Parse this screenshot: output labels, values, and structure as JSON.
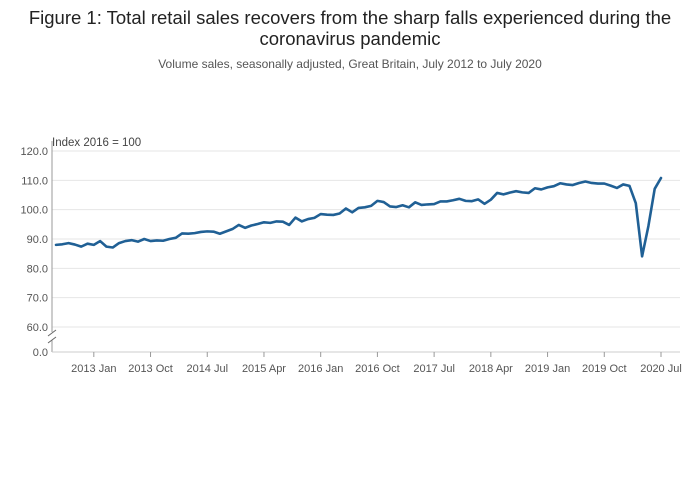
{
  "chart_data": {
    "type": "line",
    "title": "Figure 1: Total retail sales recovers from the sharp falls experienced during the coronavirus pandemic",
    "subtitle": "Volume sales, seasonally adjusted, Great Britain, July 2012 to July 2020",
    "unit_label": "Index 2016 = 100",
    "y_ticks": [
      "120.0",
      "110.0",
      "100.0",
      "90.0",
      "80.0",
      "70.0",
      "60.0",
      "0.0"
    ],
    "y_tick_values": [
      120,
      110,
      100,
      90,
      80,
      70,
      60
    ],
    "axis_break": true,
    "ylim": [
      60,
      120
    ],
    "x_ticks": [
      {
        "label": "2013 Jan",
        "index": 6
      },
      {
        "label": "2013 Oct",
        "index": 15
      },
      {
        "label": "2014 Jul",
        "index": 24
      },
      {
        "label": "2015 Apr",
        "index": 33
      },
      {
        "label": "2016 Jan",
        "index": 42
      },
      {
        "label": "2016 Oct",
        "index": 51
      },
      {
        "label": "2017 Jul",
        "index": 60
      },
      {
        "label": "2018 Apr",
        "index": 69
      },
      {
        "label": "2019 Jan",
        "index": 78
      },
      {
        "label": "2019 Oct",
        "index": 87
      },
      {
        "label": "2020 Jul",
        "index": 96
      }
    ],
    "x_start": "2012 Jul",
    "x_end": "2020 Jul",
    "grid": true,
    "line_color": "#206095",
    "series": [
      {
        "values": [
          88.0,
          88.2,
          88.6,
          88.1,
          87.4,
          88.4,
          88.0,
          89.3,
          87.4,
          87.1,
          88.6,
          89.3,
          89.6,
          89.1,
          90.0,
          89.3,
          89.5,
          89.4,
          90.0,
          90.4,
          91.9,
          91.8,
          92.0,
          92.4,
          92.6,
          92.5,
          91.8,
          92.6,
          93.4,
          94.8,
          93.8,
          94.6,
          95.1,
          95.7,
          95.5,
          96.0,
          95.9,
          94.8,
          97.3,
          96.0,
          96.8,
          97.2,
          98.5,
          98.3,
          98.2,
          98.7,
          100.4,
          99.1,
          100.6,
          100.8,
          101.3,
          103.0,
          102.6,
          101.1,
          100.9,
          101.5,
          100.8,
          102.5,
          101.6,
          101.8,
          101.9,
          102.8,
          102.8,
          103.2,
          103.7,
          103.0,
          102.9,
          103.5,
          102.0,
          103.4,
          105.7,
          105.2,
          105.8,
          106.3,
          105.9,
          105.7,
          107.3,
          106.9,
          107.6,
          108.0,
          109.0,
          108.6,
          108.4,
          109.1,
          109.6,
          109.1,
          108.9,
          108.9,
          108.2,
          107.4,
          108.6,
          108.1,
          102.2,
          84.1,
          94.4,
          107.1,
          110.8
        ]
      }
    ]
  }
}
